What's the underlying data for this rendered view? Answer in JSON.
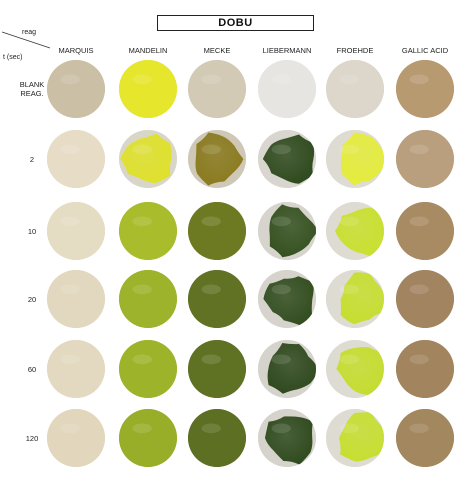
{
  "title": "DOBU",
  "corner": {
    "reag_label": "reag",
    "time_label": "t (sec)"
  },
  "columns": [
    "MARQUIS",
    "MANDELIN",
    "MECKE",
    "LIEBERMANN",
    "FROEHDE",
    "GALLIC ACID"
  ],
  "rows": [
    {
      "label": "BLANK\nREAG.",
      "wells": [
        {
          "type": "uniform",
          "bg": "#cbbfa6",
          "fill": "#cbbfa6"
        },
        {
          "type": "uniform",
          "bg": "#e0e22a",
          "fill": "#e6e62d"
        },
        {
          "type": "uniform",
          "bg": "#d3cab6",
          "fill": "#d3cab6"
        },
        {
          "type": "uniform",
          "bg": "#e6e5e2",
          "fill": "#e6e5e2"
        },
        {
          "type": "uniform",
          "bg": "#dcd6cb",
          "fill": "#dcd6cb"
        },
        {
          "type": "uniform",
          "bg": "#b89a71",
          "fill": "#b89a71"
        }
      ]
    },
    {
      "label": "2",
      "wells": [
        {
          "type": "uniform",
          "bg": "#e7dcc6",
          "fill": "#e7dcc6"
        },
        {
          "type": "blob",
          "bg": "#d8d6c9",
          "fill": "#dfe12b"
        },
        {
          "type": "blob",
          "bg": "#cfc8b7",
          "fill": "#8a7a1f"
        },
        {
          "type": "blob",
          "bg": "#d8d6cf",
          "fill": "#2f4a1e"
        },
        {
          "type": "blob",
          "bg": "#dedbd2",
          "fill": "#e4ec3a"
        },
        {
          "type": "uniform",
          "bg": "#b99f7e",
          "fill": "#b99f7e"
        }
      ]
    },
    {
      "label": "10",
      "wells": [
        {
          "type": "uniform",
          "bg": "#e5dcc4",
          "fill": "#e5dcc4"
        },
        {
          "type": "uniform",
          "bg": "#a9bc2c",
          "fill": "#a9bc2c"
        },
        {
          "type": "uniform",
          "bg": "#6e7a22",
          "fill": "#6e7a22"
        },
        {
          "type": "blob",
          "bg": "#d6d4cc",
          "fill": "#34501f"
        },
        {
          "type": "blob",
          "bg": "#dddbd2",
          "fill": "#c9e02e"
        },
        {
          "type": "uniform",
          "bg": "#a98b63",
          "fill": "#a98b63"
        }
      ]
    },
    {
      "label": "20",
      "wells": [
        {
          "type": "uniform",
          "bg": "#e2d8bf",
          "fill": "#e2d8bf"
        },
        {
          "type": "uniform",
          "bg": "#9cb32b",
          "fill": "#9cb32b"
        },
        {
          "type": "uniform",
          "bg": "#627224",
          "fill": "#627224"
        },
        {
          "type": "blob",
          "bg": "#d5d3cb",
          "fill": "#324d1f"
        },
        {
          "type": "blob",
          "bg": "#dddbd2",
          "fill": "#c6de2f"
        },
        {
          "type": "uniform",
          "bg": "#a28560",
          "fill": "#a28560"
        }
      ]
    },
    {
      "label": "60",
      "wells": [
        {
          "type": "uniform",
          "bg": "#e3d9c0",
          "fill": "#e3d9c0"
        },
        {
          "type": "uniform",
          "bg": "#9db42a",
          "fill": "#9db42a"
        },
        {
          "type": "uniform",
          "bg": "#5f7224",
          "fill": "#5f7224"
        },
        {
          "type": "blob",
          "bg": "#d5d3cb",
          "fill": "#2e481d"
        },
        {
          "type": "blob",
          "bg": "#dddbd2",
          "fill": "#c4dd2e"
        },
        {
          "type": "uniform",
          "bg": "#a2855e",
          "fill": "#a2855e"
        }
      ]
    },
    {
      "label": "120",
      "wells": [
        {
          "type": "uniform",
          "bg": "#e2d7bd",
          "fill": "#e2d7bd"
        },
        {
          "type": "uniform",
          "bg": "#98ae28",
          "fill": "#98ae28"
        },
        {
          "type": "uniform",
          "bg": "#5c6f23",
          "fill": "#5c6f23"
        },
        {
          "type": "blob",
          "bg": "#d5d3cb",
          "fill": "#2f4a1e"
        },
        {
          "type": "blob",
          "bg": "#dddbd2",
          "fill": "#c6df2f"
        },
        {
          "type": "uniform",
          "bg": "#a3875f",
          "fill": "#a3875f"
        }
      ]
    }
  ]
}
